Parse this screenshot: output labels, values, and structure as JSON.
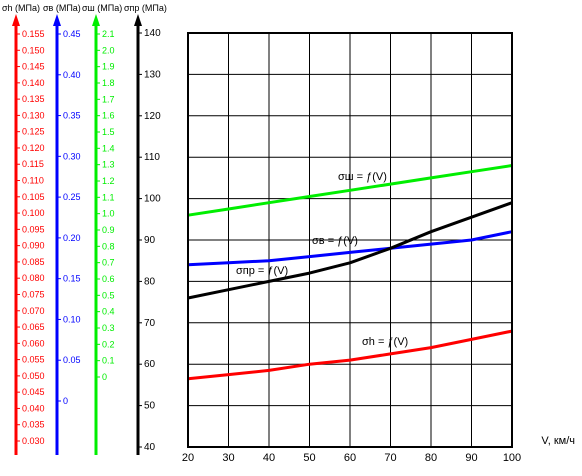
{
  "chart_data": {
    "type": "line",
    "xlabel": "V, км/ч",
    "x_ticks": [
      20,
      30,
      40,
      50,
      60,
      70,
      80,
      90,
      100
    ],
    "xlim": [
      20,
      100
    ],
    "ylim": [
      40,
      140
    ],
    "y_ticks": [
      40,
      50,
      60,
      70,
      80,
      90,
      100,
      110,
      120,
      130,
      140
    ],
    "grid": true,
    "axes": [
      {
        "id": "sigma_h",
        "label": "σh (МПа)",
        "color": "#ff0000",
        "range": [
          0.03,
          0.155
        ],
        "ticks": [
          "0.030",
          "0.035",
          "0.040",
          "0.045",
          "0.050",
          "0.055",
          "0.060",
          "0.065",
          "0.070",
          "0.075",
          "0.080",
          "0.085",
          "0.090",
          "0.095",
          "0.100",
          "0.105",
          "0.110",
          "0.115",
          "0.120",
          "0.125",
          "0.130",
          "0.135",
          "0.140",
          "0.145",
          "0.150",
          "0.155"
        ]
      },
      {
        "id": "sigma_b",
        "label": "σв (МПа)",
        "color": "#0000ff",
        "range": [
          0,
          0.45
        ],
        "ticks": [
          "0",
          "0.05",
          "0.10",
          "0.15",
          "0.20",
          "0.25",
          "0.30",
          "0.35",
          "0.40",
          "0.45"
        ]
      },
      {
        "id": "sigma_sh",
        "label": "σш (МПа)",
        "color": "#00ee00",
        "range": [
          0,
          2.1
        ],
        "ticks": [
          "0",
          "0.1",
          "0.2",
          "0.3",
          "0.4",
          "0.5",
          "0.6",
          "0.7",
          "0.8",
          "0.9",
          "1.0",
          "1.1",
          "1.2",
          "1.3",
          "1.4",
          "1.5",
          "1.6",
          "1.7",
          "1.8",
          "1.9",
          "2.0",
          "2.1"
        ]
      },
      {
        "id": "sigma_pr",
        "label": "σпр (МПа)",
        "color": "#000000",
        "range": [
          40,
          140
        ],
        "ticks": [
          "40",
          "50",
          "60",
          "70",
          "80",
          "90",
          "100",
          "110",
          "120",
          "130",
          "140"
        ]
      }
    ],
    "series": [
      {
        "name": "σш = ƒ(V)",
        "color": "#00ee00",
        "x": [
          20,
          30,
          40,
          50,
          60,
          70,
          80,
          90,
          100
        ],
        "y": [
          96,
          97.5,
          99,
          100.5,
          102,
          103.5,
          105,
          106.5,
          108
        ]
      },
      {
        "name": "σв = ƒ(V)",
        "color": "#0000ff",
        "x": [
          20,
          30,
          40,
          50,
          60,
          70,
          80,
          90,
          100
        ],
        "y": [
          84,
          84.5,
          85,
          86,
          87,
          88,
          89,
          90,
          92
        ]
      },
      {
        "name": "σпр = ƒ(V)",
        "color": "#000000",
        "x": [
          20,
          30,
          40,
          50,
          60,
          70,
          80,
          90,
          100
        ],
        "y": [
          76,
          78,
          80,
          82,
          84.5,
          88,
          92,
          95.5,
          99
        ]
      },
      {
        "name": "σh = ƒ(V)",
        "color": "#ff0000",
        "x": [
          20,
          30,
          40,
          50,
          60,
          70,
          80,
          90,
          100
        ],
        "y": [
          56.5,
          57.5,
          58.5,
          60,
          61,
          62.5,
          64,
          66,
          68
        ]
      }
    ]
  }
}
